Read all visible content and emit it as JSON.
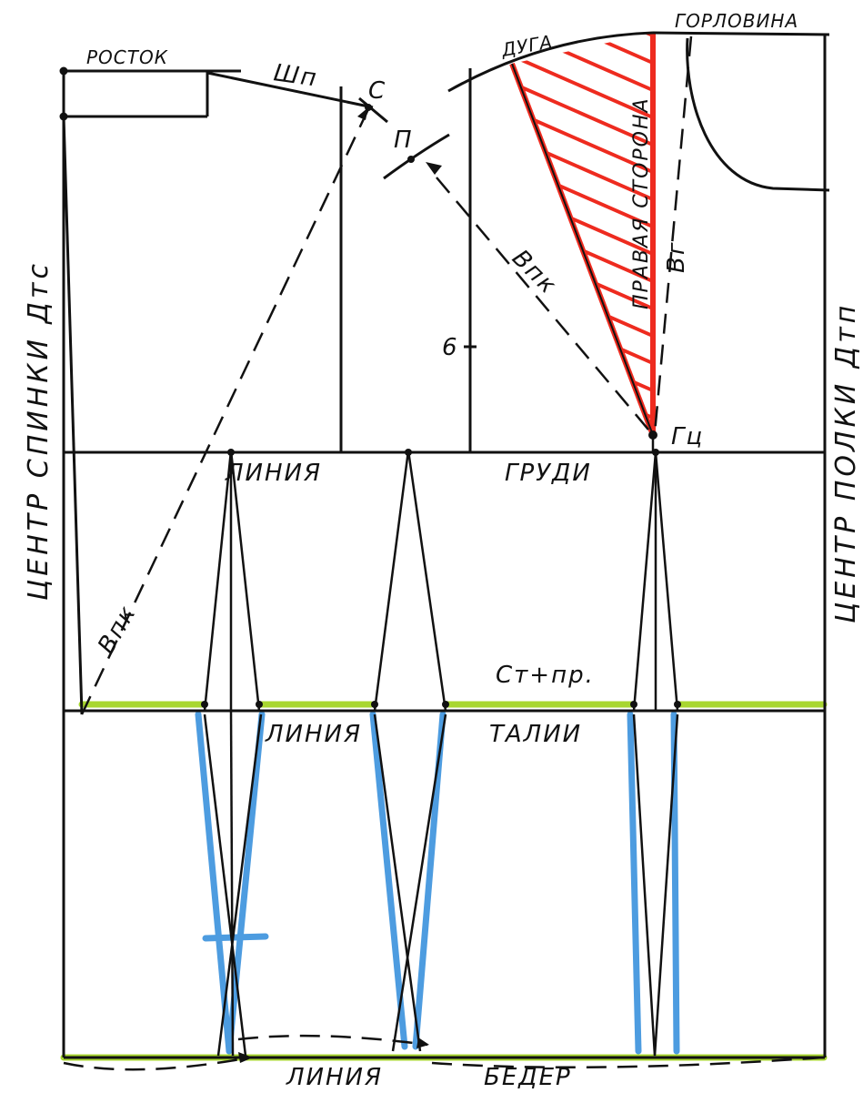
{
  "labels": {
    "rostok": "РОСТОК",
    "shp": "Шп",
    "point_c": "С",
    "point_p": "П",
    "duga": "ДУГА",
    "gorlovina": "ГОРЛОВИНА",
    "vpk": "Впк",
    "vpk_front": "Впк",
    "vg": "Вг",
    "pravaya_storona": "ПРАВАЯ СТОРОНА",
    "six": "6",
    "gc": "Гц",
    "line_chest_1": "ЛИНИЯ",
    "line_chest_2": "ГРУДИ",
    "st_pr": "Ст+пр.",
    "line_waist_1": "ЛИНИЯ",
    "line_waist_2": "ТАЛИИ",
    "line_hip_1": "ЛИНИЯ",
    "line_hip_2": "БЕДЕР",
    "center_back": "ЦЕНТР СПИНКИ Дтс",
    "center_front": "ЦЕНТР ПОЛКИ Дтп"
  },
  "colors": {
    "ink": "#111111",
    "red": "#ee2b1f",
    "green": "#a8d630",
    "blue": "#4d9ce0"
  }
}
